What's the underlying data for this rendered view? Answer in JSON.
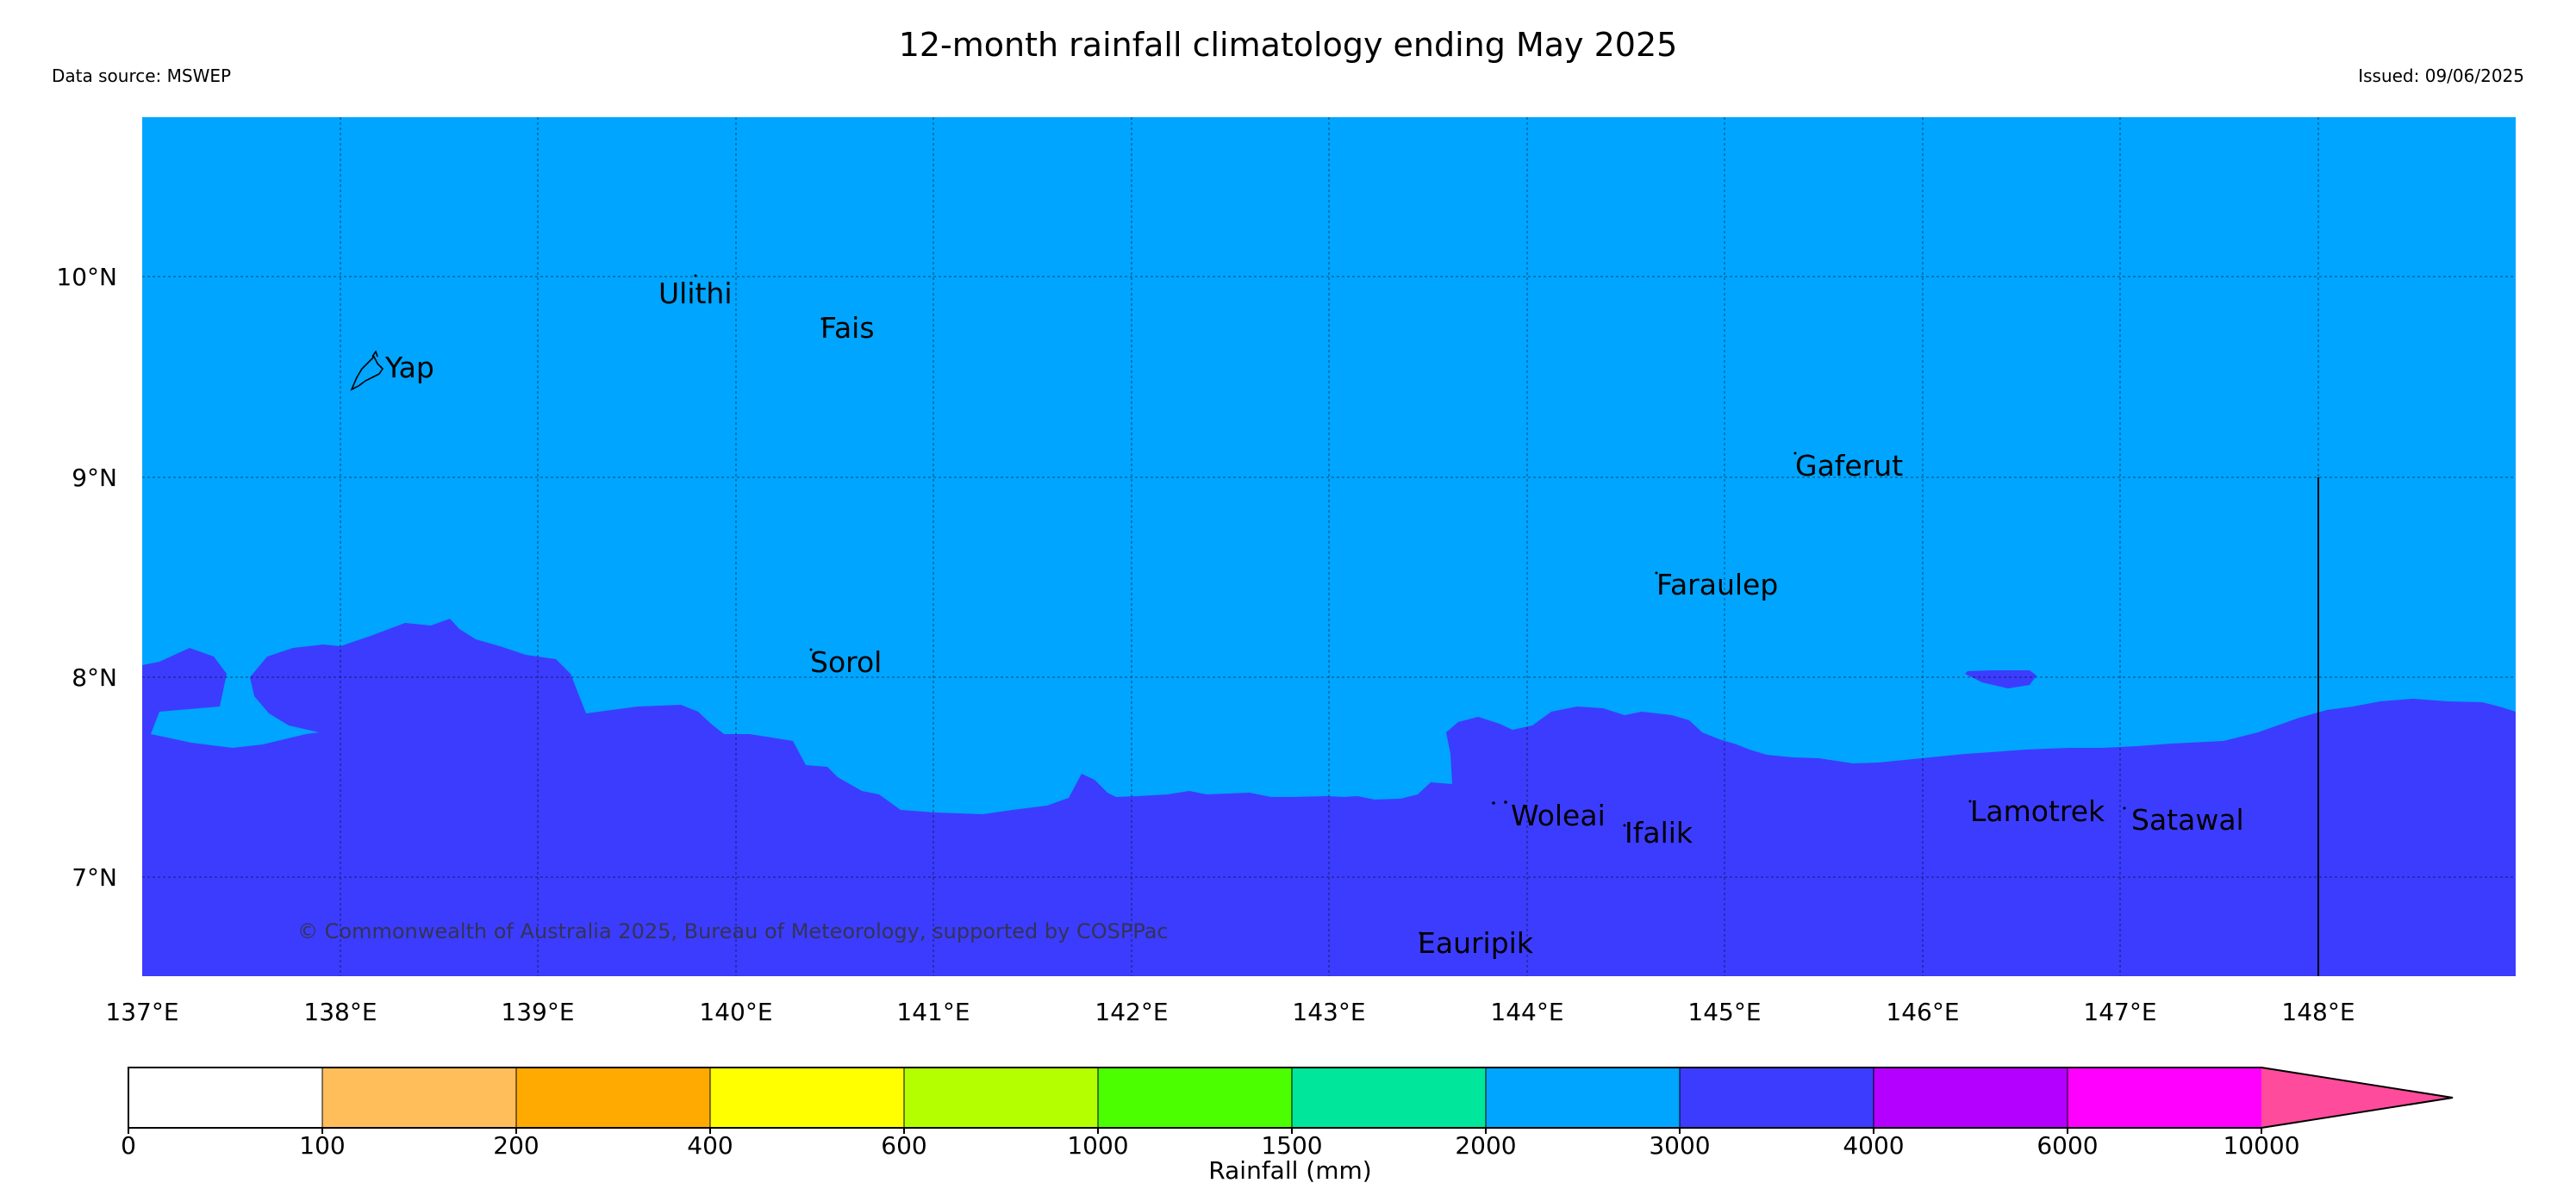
{
  "header": {
    "title": "12-month rainfall climatology ending May 2025",
    "data_source": "Data source: MSWEP",
    "issued": "Issued: 09/06/2025"
  },
  "map": {
    "lon_range": [
      137,
      149
    ],
    "lat_range": [
      6.5,
      10.8
    ],
    "x_ticks": [
      "137°E",
      "138°E",
      "139°E",
      "140°E",
      "141°E",
      "142°E",
      "143°E",
      "144°E",
      "145°E",
      "146°E",
      "147°E",
      "148°E"
    ],
    "y_ticks": [
      "7°N",
      "8°N",
      "9°N",
      "10°N"
    ],
    "grid": true,
    "colors": {
      "band_2000_3000": "#00a5ff",
      "band_3000_4000": "#3c3cff"
    },
    "copyright": "© Commonwealth of Australia 2025, Bureau of Meteorology, supported by COSPPac",
    "places": [
      {
        "name": "Yap",
        "lon": 138.22,
        "lat": 9.52
      },
      {
        "name": "Ulithi",
        "lon": 139.62,
        "lat": 9.9
      },
      {
        "name": "Fais",
        "lon": 140.44,
        "lat": 9.73
      },
      {
        "name": "Gaferut",
        "lon": 145.37,
        "lat": 9.05
      },
      {
        "name": "Faraulep",
        "lon": 144.67,
        "lat": 8.45
      },
      {
        "name": "Sorol",
        "lon": 140.38,
        "lat": 8.06
      },
      {
        "name": "Woleai",
        "lon": 143.93,
        "lat": 7.33
      },
      {
        "name": "Ifalik",
        "lon": 144.51,
        "lat": 7.2
      },
      {
        "name": "Lamotrek",
        "lon": 146.26,
        "lat": 7.34
      },
      {
        "name": "Satawal",
        "lon": 147.05,
        "lat": 7.29
      },
      {
        "name": "Eauripik",
        "lon": 143.46,
        "lat": 6.64
      }
    ]
  },
  "colorbar": {
    "label": "Rainfall (mm)",
    "ticks": [
      "0",
      "100",
      "200",
      "400",
      "600",
      "1000",
      "1500",
      "2000",
      "3000",
      "4000",
      "6000",
      "10000"
    ],
    "colors": [
      "#ffffff",
      "#ffbe5a",
      "#ffaa00",
      "#ffff00",
      "#b4ff00",
      "#4bff00",
      "#00e69b",
      "#00a5ff",
      "#3c3cff",
      "#b400ff",
      "#ff00ff"
    ],
    "extend_color": "#ff4b9b"
  }
}
